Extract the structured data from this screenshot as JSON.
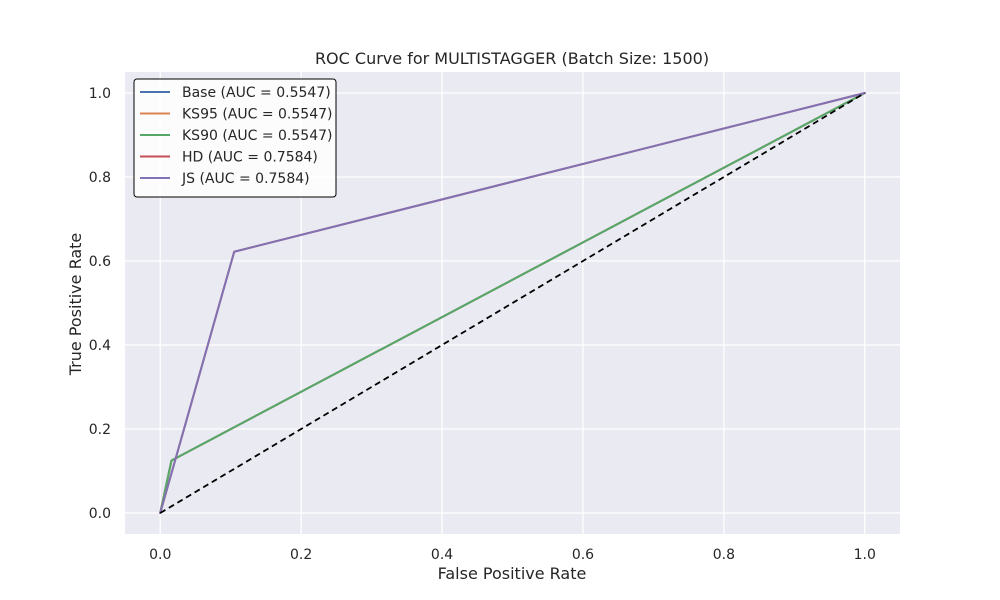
{
  "chart_data": {
    "type": "line",
    "title": "ROC Curve for MULTISTAGGER (Batch Size: 1500)",
    "xlabel": "False Positive Rate",
    "ylabel": "True Positive Rate",
    "xlim": [
      -0.05,
      1.05
    ],
    "ylim": [
      -0.05,
      1.05
    ],
    "xticks": [
      0.0,
      0.2,
      0.4,
      0.6,
      0.8,
      1.0
    ],
    "yticks": [
      0.0,
      0.2,
      0.4,
      0.6,
      0.8,
      1.0
    ],
    "xtick_labels": [
      "0.0",
      "0.2",
      "0.4",
      "0.6",
      "0.8",
      "1.0"
    ],
    "ytick_labels": [
      "0.0",
      "0.2",
      "0.4",
      "0.6",
      "0.8",
      "1.0"
    ],
    "grid": true,
    "legend_position": "top-left",
    "background_color": "#eaeaf2",
    "grid_color": "#ffffff",
    "series": [
      {
        "name": "Base (AUC = 0.5547)",
        "color": "#4c72b0",
        "x": [
          0.0,
          0.016,
          1.0
        ],
        "y": [
          0.0,
          0.125,
          1.0
        ]
      },
      {
        "name": "KS95 (AUC = 0.5547)",
        "color": "#dd8452",
        "x": [
          0.0,
          0.016,
          1.0
        ],
        "y": [
          0.0,
          0.125,
          1.0
        ]
      },
      {
        "name": "KS90 (AUC = 0.5547)",
        "color": "#55a868",
        "x": [
          0.0,
          0.016,
          1.0
        ],
        "y": [
          0.0,
          0.125,
          1.0
        ]
      },
      {
        "name": "HD (AUC = 0.7584)",
        "color": "#c44e52",
        "x": [
          0.0,
          0.105,
          1.0
        ],
        "y": [
          0.0,
          0.622,
          1.0
        ]
      },
      {
        "name": "JS (AUC = 0.7584)",
        "color": "#8172b3",
        "x": [
          0.0,
          0.105,
          1.0
        ],
        "y": [
          0.0,
          0.622,
          1.0
        ]
      }
    ],
    "reference_line": {
      "color": "#000000",
      "x": [
        0.0,
        1.0
      ],
      "y": [
        0.0,
        1.0
      ],
      "style": "dashed"
    }
  }
}
